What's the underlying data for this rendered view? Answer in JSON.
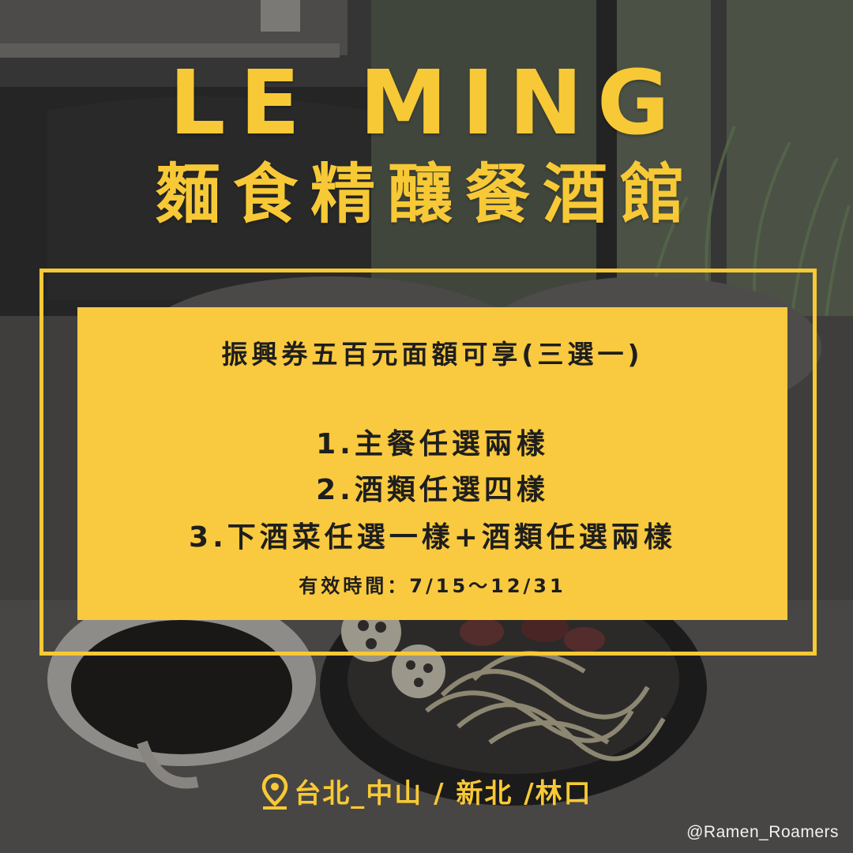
{
  "brand": {
    "name_en": "LE MING",
    "name_zh": "麵食精釀餐酒館"
  },
  "promo": {
    "headline": "振興券五百元面額可享(三選一)",
    "options": [
      "1.主餐任選兩樣",
      "2.酒類任選四樣",
      "3.下酒菜任選一樣+酒類任選兩樣"
    ],
    "validity": "有效時間：7/15～12/31"
  },
  "footer": {
    "location_icon": "map-pin-icon",
    "location": "台北_中山 / 新北 /林口",
    "handle": "@Ramen_Roamers"
  },
  "colors": {
    "accent_yellow": "#f8c936",
    "card_yellow": "#f9c93f",
    "text_dark": "#1e1e1e"
  }
}
